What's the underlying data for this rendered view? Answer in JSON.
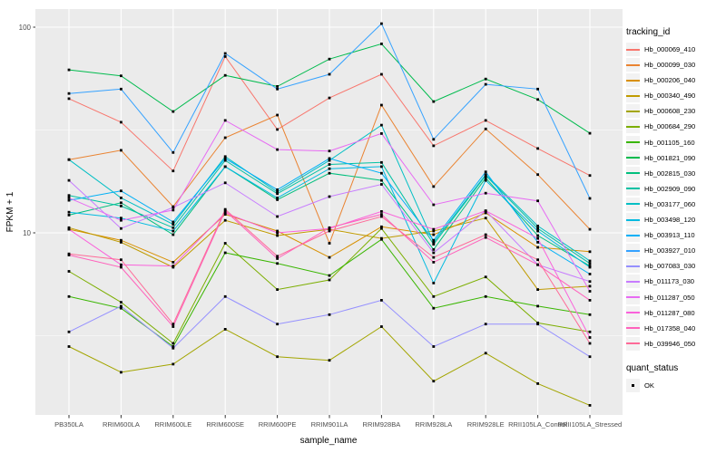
{
  "figure": {
    "legend": {
      "tracking_title": "tracking_id",
      "quant_title": "quant_status",
      "quant_items": [
        {
          "label": "OK"
        }
      ]
    }
  },
  "colors": {
    "panel_bg": "#EBEBEB",
    "gridline": "#FFFFFF",
    "point_color": "#000000",
    "legend_key_bg": "#F2F2F2",
    "axis_text": "#4D4D4D",
    "tick_color": "#333333"
  },
  "chart_data": {
    "type": "line",
    "title": "",
    "xlabel": "sample_name",
    "ylabel": "FPKM + 1",
    "log_scale_y": true,
    "ylim": [
      1.3,
      125
    ],
    "y_major_ticks": [
      10,
      100
    ],
    "y_minor_gridlines": [
      3.162,
      31.623
    ],
    "grid": true,
    "legend_position": "right",
    "categories": [
      "PB350LA",
      "RRIM600LA",
      "RRIM600LE",
      "RRIM600SE",
      "RRIM600PE",
      "RRIM901LA",
      "RRIM928BA",
      "RRIM928LA",
      "RRIM928LE",
      "RRII105LA_Control",
      "RRII105LA_Stressed"
    ],
    "series": [
      {
        "name": "Hb_000069_410",
        "color": "#F8766D",
        "values": [
          44.9,
          34.5,
          20.0,
          72.0,
          31.8,
          45.3,
          59.0,
          26.5,
          35.2,
          25.7,
          19.0
        ]
      },
      {
        "name": "Hb_000099_030",
        "color": "#EA8331",
        "values": [
          22.7,
          25.2,
          13.4,
          29.0,
          37.4,
          8.9,
          41.8,
          16.8,
          32.0,
          19.2,
          10.4
        ]
      },
      {
        "name": "Hb_000206_040",
        "color": "#D89000",
        "values": [
          10.4,
          9.2,
          7.2,
          12.3,
          10.2,
          7.6,
          10.7,
          9.8,
          12.5,
          8.5,
          8.1
        ]
      },
      {
        "name": "Hb_000340_490",
        "color": "#C09B00",
        "values": [
          10.6,
          9.0,
          6.8,
          11.5,
          9.7,
          10.4,
          9.4,
          10.2,
          11.8,
          5.3,
          5.5
        ]
      },
      {
        "name": "Hb_000608_230",
        "color": "#A3A500",
        "values": [
          2.8,
          2.1,
          2.3,
          3.4,
          2.5,
          2.4,
          3.5,
          1.9,
          2.6,
          1.85,
          1.45
        ]
      },
      {
        "name": "Hb_000684_290",
        "color": "#7CAE00",
        "values": [
          6.5,
          4.6,
          2.9,
          8.9,
          5.3,
          5.9,
          10.5,
          4.9,
          6.1,
          3.65,
          3.3
        ]
      },
      {
        "name": "Hb_001105_160",
        "color": "#39B600",
        "values": [
          4.9,
          4.3,
          2.8,
          8.0,
          7.1,
          6.2,
          9.3,
          4.3,
          4.9,
          4.4,
          4.0
        ]
      },
      {
        "name": "Hb_001821_090",
        "color": "#00BB4E",
        "values": [
          62.0,
          58.0,
          38.9,
          58.3,
          51.5,
          70.0,
          83.0,
          43.5,
          56.0,
          44.5,
          30.5
        ]
      },
      {
        "name": "Hb_002815_030",
        "color": "#00BF7D",
        "values": [
          12.2,
          14.0,
          9.8,
          21.0,
          14.5,
          19.5,
          18.0,
          8.3,
          18.5,
          9.7,
          6.9
        ]
      },
      {
        "name": "Hb_002909_090",
        "color": "#00C1A3",
        "values": [
          15.2,
          13.5,
          10.6,
          22.5,
          15.5,
          21.5,
          22.0,
          8.8,
          19.0,
          10.5,
          7.1
        ]
      },
      {
        "name": "Hb_003177_060",
        "color": "#00BFC4",
        "values": [
          22.7,
          14.8,
          11.0,
          23.5,
          15.8,
          22.5,
          33.4,
          9.0,
          19.2,
          10.8,
          7.3
        ]
      },
      {
        "name": "Hb_003498_120",
        "color": "#00BAE0",
        "values": [
          12.6,
          11.8,
          10.2,
          21.0,
          14.8,
          20.5,
          21.0,
          5.7,
          18.0,
          10.2,
          6.8
        ]
      },
      {
        "name": "Hb_003913_110",
        "color": "#00B0F6",
        "values": [
          14.4,
          16.0,
          11.3,
          23.0,
          16.2,
          23.0,
          19.5,
          9.2,
          19.8,
          9.0,
          6.3
        ]
      },
      {
        "name": "Hb_003927_010",
        "color": "#35A2FF",
        "values": [
          47.6,
          50.0,
          24.6,
          74.5,
          50.0,
          59.0,
          104.0,
          28.5,
          52.7,
          50.0,
          14.7
        ]
      },
      {
        "name": "Hb_007083_030",
        "color": "#9590FF",
        "values": [
          3.3,
          4.4,
          2.75,
          4.9,
          3.6,
          4.0,
          4.7,
          2.8,
          3.6,
          3.6,
          2.5
        ]
      },
      {
        "name": "Hb_011173_030",
        "color": "#C77CFF",
        "values": [
          18.0,
          10.5,
          13.3,
          17.5,
          12.0,
          15.0,
          17.2,
          8.0,
          12.8,
          7.0,
          5.8
        ]
      },
      {
        "name": "Hb_011287_050",
        "color": "#E76BF3",
        "values": [
          14.8,
          11.5,
          12.9,
          35.2,
          25.4,
          25.0,
          30.4,
          13.7,
          15.6,
          14.3,
          5.2
        ]
      },
      {
        "name": "Hb_011287_080",
        "color": "#FA62DB",
        "values": [
          10.4,
          7.0,
          6.9,
          12.5,
          10.0,
          10.5,
          12.7,
          10.4,
          12.8,
          9.4,
          3.1
        ]
      },
      {
        "name": "Hb_017358_040",
        "color": "#FF62BC",
        "values": [
          7.8,
          6.8,
          3.5,
          12.8,
          7.5,
          10.6,
          12.3,
          7.2,
          9.5,
          7.0,
          4.7
        ]
      },
      {
        "name": "Hb_039946_050",
        "color": "#FF6A98",
        "values": [
          7.9,
          7.4,
          3.6,
          13.0,
          7.7,
          10.2,
          12.0,
          7.6,
          9.8,
          7.4,
          2.9
        ]
      }
    ]
  }
}
